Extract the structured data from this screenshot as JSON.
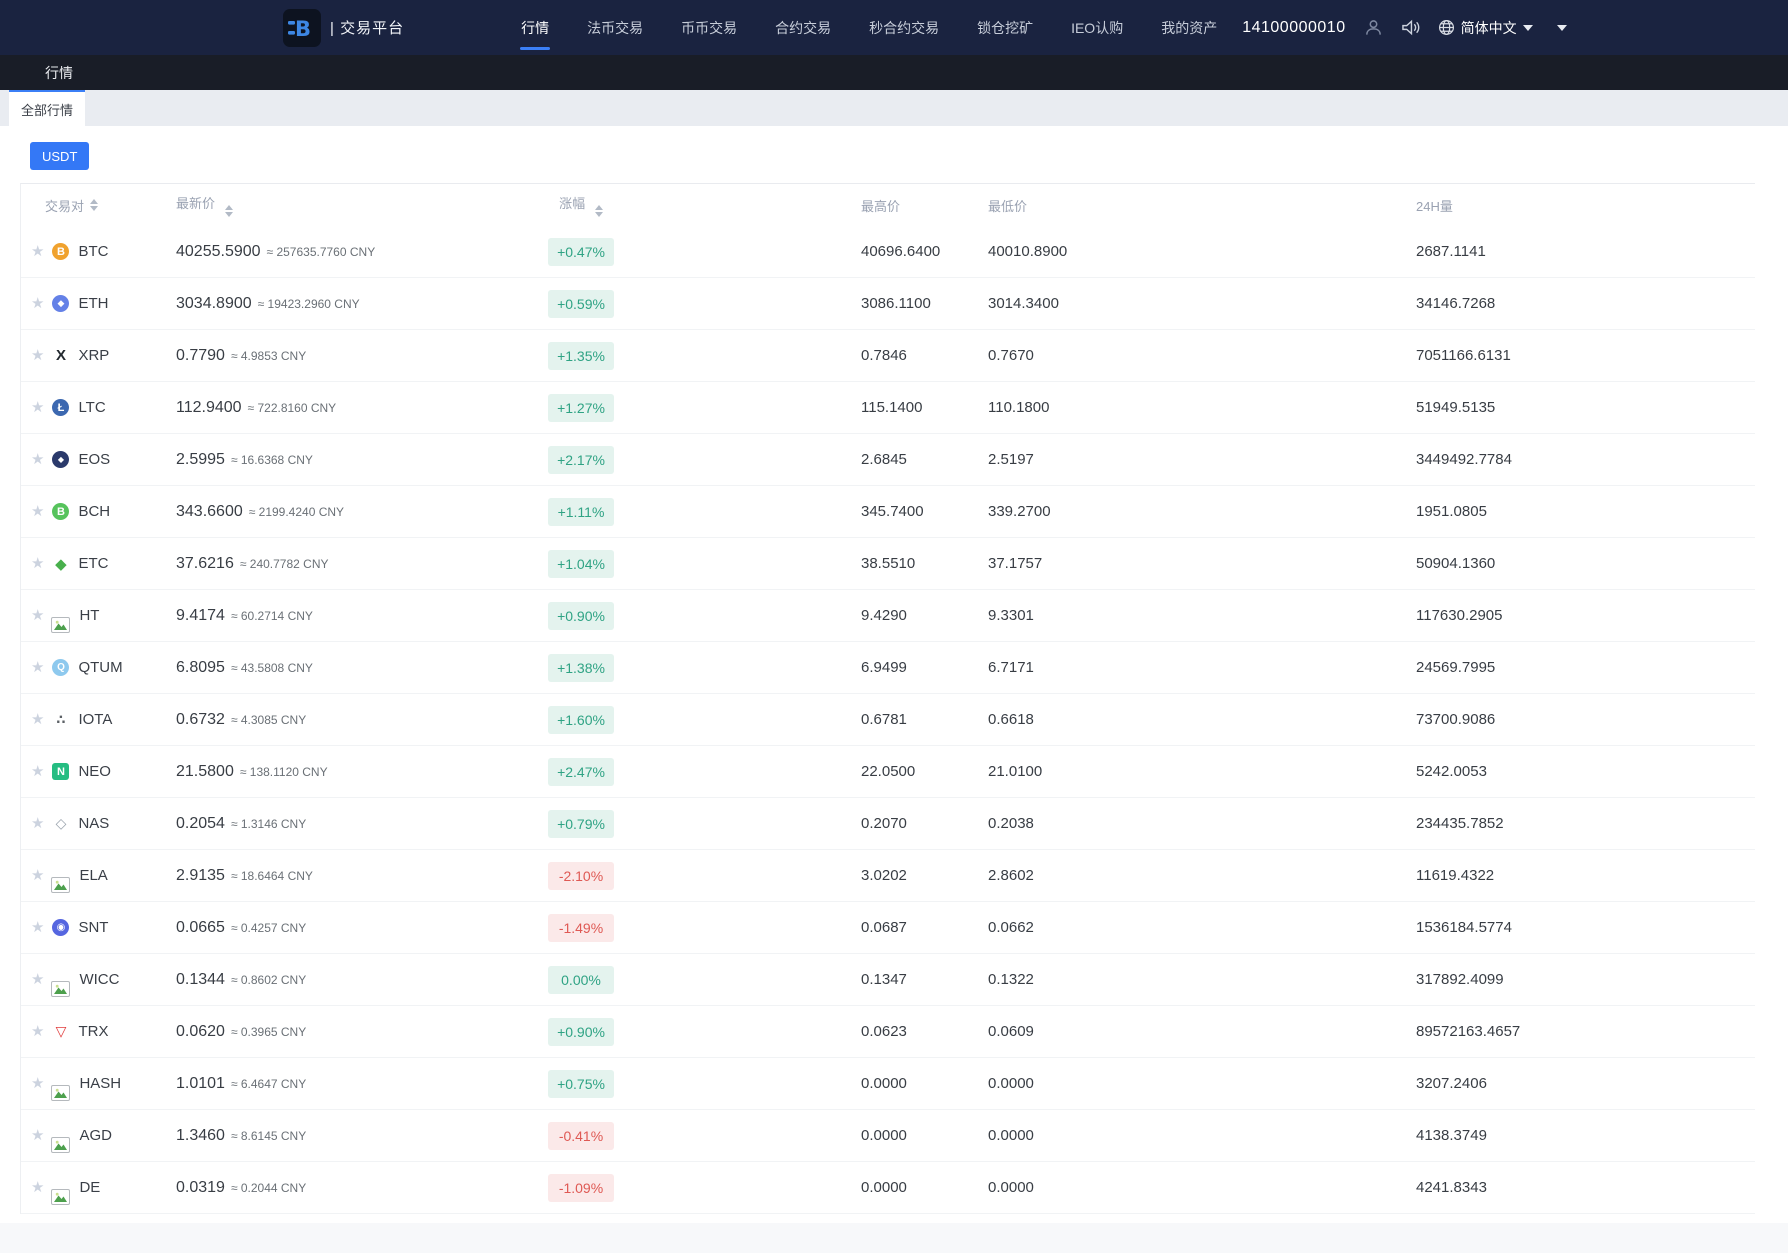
{
  "navbar": {
    "brand": {
      "logo_letter": "B",
      "title": "| 交易平台"
    },
    "items": [
      {
        "label": "行情",
        "active": true
      },
      {
        "label": "法币交易",
        "active": false
      },
      {
        "label": "币币交易",
        "active": false
      },
      {
        "label": "合约交易",
        "active": false
      },
      {
        "label": "秒合约交易",
        "active": false
      },
      {
        "label": "锁仓挖矿",
        "active": false
      },
      {
        "label": "IEO认购",
        "active": false
      },
      {
        "label": "我的资产",
        "active": false
      }
    ],
    "balance": "14100000010",
    "language": "简体中文"
  },
  "subnav": {
    "title": "行情"
  },
  "tabs": {
    "active": "全部行情"
  },
  "filters": {
    "usdt_label": "USDT"
  },
  "colors": {
    "accent": "#3478f6",
    "up_text": "#2fa384",
    "up_bg": "#e4f3ee",
    "down_text": "#df5954",
    "down_bg": "#fbe9e9",
    "navbar_bg": "#1a2340",
    "subnav_bg": "#191d27"
  },
  "table": {
    "approx": "≈",
    "cny": "CNY",
    "headers": [
      {
        "label": "交易对",
        "sortable": true
      },
      {
        "label": "最新价",
        "sortable": true
      },
      {
        "label": "涨幅",
        "sortable": true
      },
      {
        "label": "最高价",
        "sortable": false
      },
      {
        "label": "最低价",
        "sortable": false
      },
      {
        "label": "24H量",
        "sortable": false
      }
    ],
    "rows": [
      {
        "symbol": "BTC",
        "icon": {
          "kind": "circle",
          "bg": "#f0a22e",
          "glyph": "B"
        },
        "price": "40255.5900",
        "cny": "257635.7760",
        "change": "+0.47%",
        "high": "40696.6400",
        "low": "40010.8900",
        "vol": "2687.1141"
      },
      {
        "symbol": "ETH",
        "icon": {
          "kind": "circle",
          "bg": "#6481e7",
          "glyph": "◆",
          "size": 9
        },
        "price": "3034.8900",
        "cny": "19423.2960",
        "change": "+0.59%",
        "high": "3086.1100",
        "low": "3014.3400",
        "vol": "34146.7268"
      },
      {
        "symbol": "XRP",
        "icon": {
          "kind": "glyph",
          "fg": "#23292f",
          "glyph": "X"
        },
        "price": "0.7790",
        "cny": "4.9853",
        "change": "+1.35%",
        "high": "0.7846",
        "low": "0.7670",
        "vol": "7051166.6131"
      },
      {
        "symbol": "LTC",
        "icon": {
          "kind": "circle",
          "bg": "#3c68b0",
          "glyph": "Ł"
        },
        "price": "112.9400",
        "cny": "722.8160",
        "change": "+1.27%",
        "high": "115.1400",
        "low": "110.1800",
        "vol": "51949.5135"
      },
      {
        "symbol": "EOS",
        "icon": {
          "kind": "circle",
          "bg": "#2b3a6b",
          "glyph": "◆",
          "size": 8
        },
        "price": "2.5995",
        "cny": "16.6368",
        "change": "+2.17%",
        "high": "2.6845",
        "low": "2.5197",
        "vol": "3449492.7784"
      },
      {
        "symbol": "BCH",
        "icon": {
          "kind": "circle",
          "bg": "#56c35c",
          "glyph": "B"
        },
        "price": "343.6600",
        "cny": "2199.4240",
        "change": "+1.11%",
        "high": "345.7400",
        "low": "339.2700",
        "vol": "1951.0805"
      },
      {
        "symbol": "ETC",
        "icon": {
          "kind": "glyph",
          "fg": "#48b04c",
          "glyph": "◆"
        },
        "price": "37.6216",
        "cny": "240.7782",
        "change": "+1.04%",
        "high": "38.5510",
        "low": "37.1757",
        "vol": "50904.1360"
      },
      {
        "symbol": "HT",
        "icon": {
          "kind": "broken"
        },
        "price": "9.4174",
        "cny": "60.2714",
        "change": "+0.90%",
        "high": "9.4290",
        "low": "9.3301",
        "vol": "117630.2905"
      },
      {
        "symbol": "QTUM",
        "icon": {
          "kind": "circle",
          "bg": "#8ec9ee",
          "glyph": "Q",
          "size": 10
        },
        "price": "6.8095",
        "cny": "43.5808",
        "change": "+1.38%",
        "high": "6.9499",
        "low": "6.7171",
        "vol": "24569.7995"
      },
      {
        "symbol": "IOTA",
        "icon": {
          "kind": "glyph",
          "fg": "#5c6166",
          "glyph": "∴",
          "size": 13
        },
        "price": "0.6732",
        "cny": "4.3085",
        "change": "+1.60%",
        "high": "0.6781",
        "low": "0.6618",
        "vol": "73700.9086"
      },
      {
        "symbol": "NEO",
        "icon": {
          "kind": "square",
          "bg": "#25bd82",
          "glyph": "N"
        },
        "price": "21.5800",
        "cny": "138.1120",
        "change": "+2.47%",
        "high": "22.0500",
        "low": "21.0100",
        "vol": "5242.0053"
      },
      {
        "symbol": "NAS",
        "icon": {
          "kind": "glyph",
          "fg": "#9aa3ad",
          "glyph": "◇",
          "size": 14
        },
        "price": "0.2054",
        "cny": "1.3146",
        "change": "+0.79%",
        "high": "0.2070",
        "low": "0.2038",
        "vol": "234435.7852"
      },
      {
        "symbol": "ELA",
        "icon": {
          "kind": "broken"
        },
        "price": "2.9135",
        "cny": "18.6464",
        "change": "-2.10%",
        "high": "3.0202",
        "low": "2.8602",
        "vol": "11619.4322"
      },
      {
        "symbol": "SNT",
        "icon": {
          "kind": "circle",
          "bg": "#5566e0",
          "glyph": "◉",
          "size": 10
        },
        "price": "0.0665",
        "cny": "0.4257",
        "change": "-1.49%",
        "high": "0.0687",
        "low": "0.0662",
        "vol": "1536184.5774"
      },
      {
        "symbol": "WICC",
        "icon": {
          "kind": "broken"
        },
        "price": "0.1344",
        "cny": "0.8602",
        "change": "0.00%",
        "high": "0.1347",
        "low": "0.1322",
        "vol": "317892.4099"
      },
      {
        "symbol": "TRX",
        "icon": {
          "kind": "glyph",
          "fg": "#e13c3c",
          "glyph": "▽",
          "size": 14
        },
        "price": "0.0620",
        "cny": "0.3965",
        "change": "+0.90%",
        "high": "0.0623",
        "low": "0.0609",
        "vol": "89572163.4657"
      },
      {
        "symbol": "HASH",
        "icon": {
          "kind": "broken"
        },
        "price": "1.0101",
        "cny": "6.4647",
        "change": "+0.75%",
        "high": "0.0000",
        "low": "0.0000",
        "vol": "3207.2406"
      },
      {
        "symbol": "AGD",
        "icon": {
          "kind": "broken"
        },
        "price": "1.3460",
        "cny": "8.6145",
        "change": "-0.41%",
        "high": "0.0000",
        "low": "0.0000",
        "vol": "4138.3749"
      },
      {
        "symbol": "DE",
        "icon": {
          "kind": "broken"
        },
        "price": "0.0319",
        "cny": "0.2044",
        "change": "-1.09%",
        "high": "0.0000",
        "low": "0.0000",
        "vol": "4241.8343"
      }
    ]
  }
}
